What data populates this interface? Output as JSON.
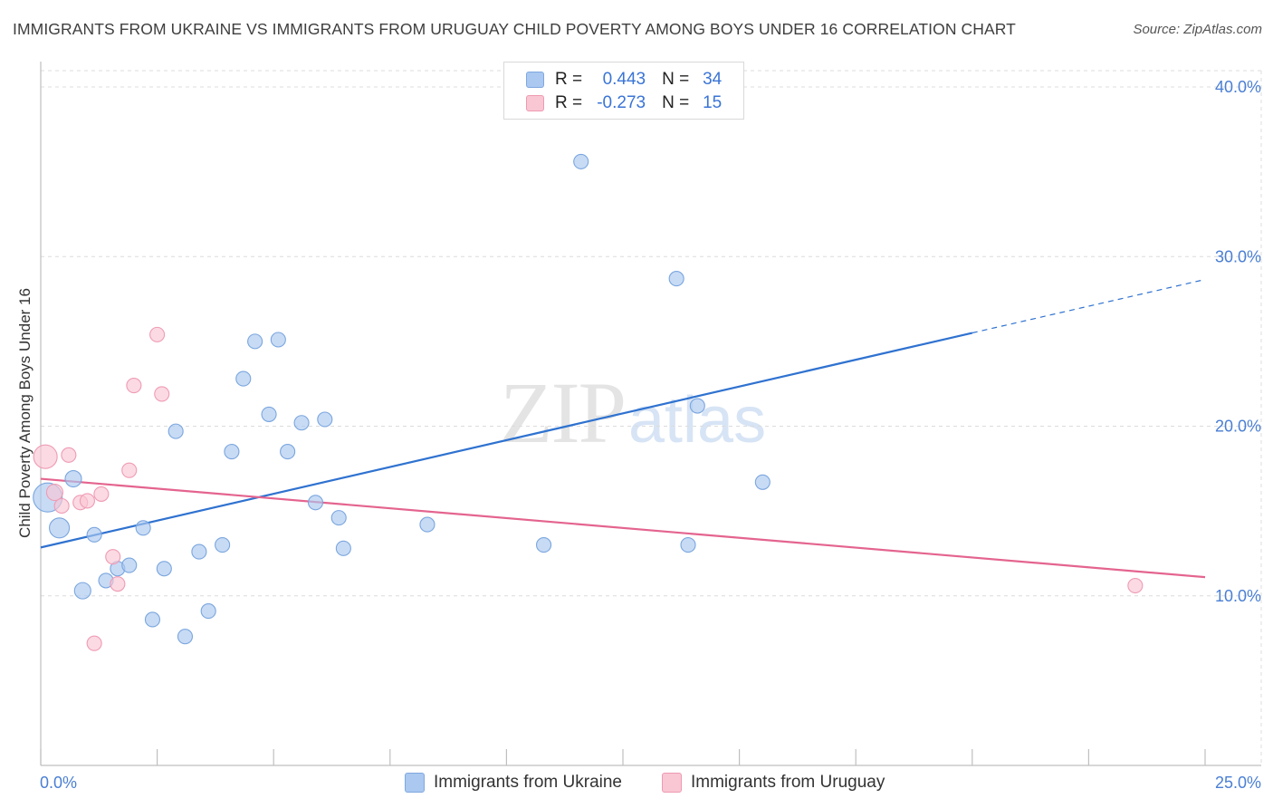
{
  "title": "IMMIGRANTS FROM UKRAINE VS IMMIGRANTS FROM URUGUAY CHILD POVERTY AMONG BOYS UNDER 16 CORRELATION CHART",
  "source": "Source: ZipAtlas.com",
  "watermark": {
    "zip": "ZIP",
    "atlas": "atlas"
  },
  "legend": {
    "r_label": "R =",
    "n_label": "N =",
    "rows": [
      {
        "series": "Immigrants from Ukraine",
        "r": "0.443",
        "n": "34",
        "color": "#aac8f0",
        "border": "#7fa8e0"
      },
      {
        "series": "Immigrants from Uruguay",
        "r": "-0.273",
        "n": "15",
        "color": "#f9c6d4",
        "border": "#ee9ab2"
      }
    ]
  },
  "chart_data": {
    "type": "scatter",
    "title": "IMMIGRANTS FROM UKRAINE VS IMMIGRANTS FROM URUGUAY CHILD POVERTY AMONG BOYS UNDER 16 CORRELATION CHART",
    "xlabel": "",
    "ylabel": "Child Poverty Among Boys Under 16",
    "xlim": [
      0,
      25
    ],
    "ylim": [
      0,
      40
    ],
    "x_tick_labels": [
      "0.0%",
      "25.0%"
    ],
    "y_ticks": [
      {
        "value": 10,
        "label": "10.0%"
      },
      {
        "value": 20,
        "label": "20.0%"
      },
      {
        "value": 30,
        "label": "30.0%"
      },
      {
        "value": 40,
        "label": "40.0%"
      }
    ],
    "legend_position": "top-center",
    "series": [
      {
        "name": "Immigrants from Ukraine",
        "color": "#aac8f0",
        "stroke": "#7aa6de",
        "trend_color": "#2f72d0",
        "trend": {
          "x0": 0,
          "y0": 12.85,
          "x1": 20,
          "y1": 25.5,
          "x_dash_end": 25,
          "y_dash_end": 28.65
        },
        "points": [
          {
            "x": 0.15,
            "y": 15.8,
            "s": 16
          },
          {
            "x": 0.4,
            "y": 14.0,
            "s": 11
          },
          {
            "x": 0.7,
            "y": 16.9,
            "s": 9
          },
          {
            "x": 0.9,
            "y": 10.3,
            "s": 9
          },
          {
            "x": 1.15,
            "y": 13.6,
            "s": 8
          },
          {
            "x": 1.4,
            "y": 10.9,
            "s": 8
          },
          {
            "x": 1.65,
            "y": 11.6,
            "s": 8
          },
          {
            "x": 1.9,
            "y": 11.8,
            "s": 8
          },
          {
            "x": 2.2,
            "y": 14.0,
            "s": 8
          },
          {
            "x": 2.4,
            "y": 8.6,
            "s": 8
          },
          {
            "x": 2.65,
            "y": 11.6,
            "s": 8
          },
          {
            "x": 2.9,
            "y": 19.7,
            "s": 8
          },
          {
            "x": 3.1,
            "y": 7.6,
            "s": 8
          },
          {
            "x": 3.4,
            "y": 12.6,
            "s": 8
          },
          {
            "x": 3.6,
            "y": 9.1,
            "s": 8
          },
          {
            "x": 3.9,
            "y": 13.0,
            "s": 8
          },
          {
            "x": 4.1,
            "y": 18.5,
            "s": 8
          },
          {
            "x": 4.35,
            "y": 22.8,
            "s": 8
          },
          {
            "x": 4.6,
            "y": 25.0,
            "s": 8
          },
          {
            "x": 4.9,
            "y": 20.7,
            "s": 8
          },
          {
            "x": 5.1,
            "y": 25.1,
            "s": 8
          },
          {
            "x": 5.3,
            "y": 18.5,
            "s": 8
          },
          {
            "x": 5.6,
            "y": 20.2,
            "s": 8
          },
          {
            "x": 5.9,
            "y": 15.5,
            "s": 8
          },
          {
            "x": 6.1,
            "y": 20.4,
            "s": 8
          },
          {
            "x": 6.4,
            "y": 14.6,
            "s": 8
          },
          {
            "x": 6.5,
            "y": 12.8,
            "s": 8
          },
          {
            "x": 8.3,
            "y": 14.2,
            "s": 8
          },
          {
            "x": 10.8,
            "y": 13.0,
            "s": 8
          },
          {
            "x": 11.6,
            "y": 35.6,
            "s": 8
          },
          {
            "x": 13.65,
            "y": 28.7,
            "s": 8
          },
          {
            "x": 13.9,
            "y": 13.0,
            "s": 8
          },
          {
            "x": 14.1,
            "y": 21.2,
            "s": 8
          },
          {
            "x": 15.5,
            "y": 16.7,
            "s": 8
          }
        ]
      },
      {
        "name": "Immigrants from Uruguay",
        "color": "#f9c6d4",
        "stroke": "#ef9bb4",
        "trend_color": "#e4648e",
        "trend": {
          "x0": 0,
          "y0": 16.9,
          "x1": 25,
          "y1": 11.1
        },
        "points": [
          {
            "x": 0.1,
            "y": 18.2,
            "s": 13
          },
          {
            "x": 0.3,
            "y": 16.1,
            "s": 9
          },
          {
            "x": 0.45,
            "y": 15.3,
            "s": 8
          },
          {
            "x": 0.6,
            "y": 18.3,
            "s": 8
          },
          {
            "x": 0.85,
            "y": 15.5,
            "s": 8
          },
          {
            "x": 1.0,
            "y": 15.6,
            "s": 8
          },
          {
            "x": 1.15,
            "y": 7.2,
            "s": 8
          },
          {
            "x": 1.3,
            "y": 16.0,
            "s": 8
          },
          {
            "x": 1.55,
            "y": 12.3,
            "s": 8
          },
          {
            "x": 1.65,
            "y": 10.7,
            "s": 8
          },
          {
            "x": 1.9,
            "y": 17.4,
            "s": 8
          },
          {
            "x": 2.0,
            "y": 22.4,
            "s": 8
          },
          {
            "x": 2.5,
            "y": 25.4,
            "s": 8
          },
          {
            "x": 2.6,
            "y": 21.9,
            "s": 8
          },
          {
            "x": 23.5,
            "y": 10.6,
            "s": 8
          }
        ]
      }
    ]
  }
}
